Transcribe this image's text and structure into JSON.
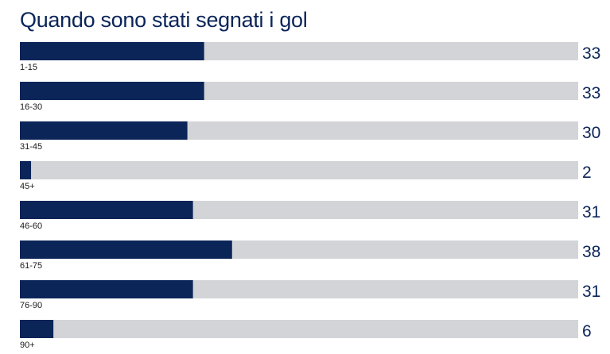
{
  "title": "Quando sono stati segnati i gol",
  "colors": {
    "bar": "#0b2559",
    "track": "#d3d4d8",
    "text": "#0b2559",
    "label": "#1a1a1a"
  },
  "chart_data": {
    "type": "bar",
    "orientation": "horizontal",
    "title": "Quando sono stati segnati i gol",
    "categories": [
      "1-15",
      "16-30",
      "31-45",
      "45+",
      "46-60",
      "61-75",
      "76-90",
      "90+"
    ],
    "values": [
      33,
      33,
      30,
      2,
      31,
      38,
      31,
      6
    ],
    "xlim": [
      0,
      100
    ],
    "grid": false,
    "legend": "none"
  }
}
